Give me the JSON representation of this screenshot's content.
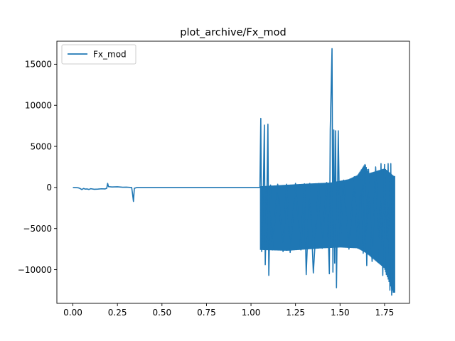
{
  "chart_data": {
    "type": "line",
    "title": "plot_archive/Fx_mod",
    "xlabel": "",
    "ylabel": "",
    "xlim": [
      -0.09,
      1.89
    ],
    "ylim": [
      -14100,
      17800
    ],
    "xticks": [
      0.0,
      0.25,
      0.5,
      0.75,
      1.0,
      1.25,
      1.5,
      1.75
    ],
    "xtick_labels": [
      "0.00",
      "0.25",
      "0.50",
      "0.75",
      "1.00",
      "1.25",
      "1.50",
      "1.75"
    ],
    "yticks": [
      -10000,
      -5000,
      0,
      5000,
      10000,
      15000
    ],
    "ytick_labels": [
      "−10000",
      "−5000",
      "0",
      "5000",
      "10000",
      "15000"
    ],
    "grid": false,
    "legend_position": "upper left",
    "colors": {
      "series": "#1f77b4"
    },
    "series": [
      {
        "name": "Fx_mod",
        "color": "#1f77b4",
        "points": [
          [
            0.0,
            0
          ],
          [
            0.03,
            -40
          ],
          [
            0.04,
            -120
          ],
          [
            0.05,
            -250
          ],
          [
            0.06,
            -120
          ],
          [
            0.07,
            -200
          ],
          [
            0.08,
            -180
          ],
          [
            0.09,
            -240
          ],
          [
            0.1,
            -150
          ],
          [
            0.12,
            -220
          ],
          [
            0.14,
            -200
          ],
          [
            0.16,
            -160
          ],
          [
            0.18,
            -180
          ],
          [
            0.19,
            -100
          ],
          [
            0.195,
            500
          ],
          [
            0.2,
            100
          ],
          [
            0.22,
            60
          ],
          [
            0.25,
            80
          ],
          [
            0.28,
            30
          ],
          [
            0.3,
            40
          ],
          [
            0.33,
            0
          ],
          [
            0.335,
            -800
          ],
          [
            0.34,
            -1700
          ],
          [
            0.345,
            -100
          ],
          [
            0.36,
            0
          ],
          [
            0.5,
            0
          ],
          [
            0.75,
            0
          ],
          [
            1.0,
            0
          ],
          [
            1.05,
            0
          ],
          [
            1.055,
            8400
          ],
          [
            1.06,
            -7800
          ],
          [
            1.07,
            500
          ],
          [
            1.075,
            7600
          ],
          [
            1.08,
            -9400
          ],
          [
            1.09,
            300
          ],
          [
            1.095,
            7700
          ],
          [
            1.1,
            -10700
          ],
          [
            1.11,
            300
          ],
          [
            1.12,
            -7600
          ],
          [
            1.15,
            400
          ],
          [
            1.18,
            -7800
          ],
          [
            1.2,
            400
          ],
          [
            1.22,
            -7900
          ],
          [
            1.25,
            500
          ],
          [
            1.28,
            -7600
          ],
          [
            1.3,
            450
          ],
          [
            1.31,
            -10600
          ],
          [
            1.33,
            500
          ],
          [
            1.35,
            -10400
          ],
          [
            1.38,
            500
          ],
          [
            1.4,
            -7400
          ],
          [
            1.425,
            600
          ],
          [
            1.44,
            -10500
          ],
          [
            1.445,
            7000
          ],
          [
            1.455,
            16900
          ],
          [
            1.46,
            -10300
          ],
          [
            1.465,
            7000
          ],
          [
            1.47,
            -9200
          ],
          [
            1.475,
            6900
          ],
          [
            1.48,
            -12200
          ],
          [
            1.49,
            6900
          ],
          [
            1.5,
            -7200
          ],
          [
            1.52,
            900
          ],
          [
            1.55,
            -7500
          ],
          [
            1.58,
            1300
          ],
          [
            1.6,
            -7400
          ],
          [
            1.62,
            1900
          ],
          [
            1.63,
            -8000
          ],
          [
            1.64,
            2800
          ],
          [
            1.65,
            -9500
          ],
          [
            1.66,
            2200
          ],
          [
            1.68,
            -9000
          ],
          [
            1.7,
            2500
          ],
          [
            1.72,
            -8700
          ],
          [
            1.73,
            2900
          ],
          [
            1.74,
            -10700
          ],
          [
            1.75,
            2800
          ],
          [
            1.76,
            -10600
          ],
          [
            1.77,
            2900
          ],
          [
            1.78,
            -12500
          ],
          [
            1.785,
            2900
          ],
          [
            1.79,
            -13100
          ],
          [
            1.795,
            1400
          ],
          [
            1.8,
            -12700
          ]
        ]
      }
    ],
    "oscillation_band": {
      "x_range": [
        1.055,
        1.805
      ],
      "upper": [
        [
          1.055,
          150
        ],
        [
          1.3,
          450
        ],
        [
          1.45,
          600
        ],
        [
          1.55,
          1000
        ],
        [
          1.6,
          1500
        ],
        [
          1.64,
          2800
        ],
        [
          1.66,
          1700
        ],
        [
          1.75,
          2300
        ],
        [
          1.8,
          1400
        ]
      ],
      "lower": [
        [
          1.055,
          -7600
        ],
        [
          1.2,
          -7700
        ],
        [
          1.4,
          -7400
        ],
        [
          1.5,
          -7300
        ],
        [
          1.6,
          -7400
        ],
        [
          1.65,
          -8000
        ],
        [
          1.7,
          -8900
        ],
        [
          1.75,
          -9800
        ],
        [
          1.78,
          -11700
        ],
        [
          1.8,
          -12800
        ]
      ]
    }
  }
}
